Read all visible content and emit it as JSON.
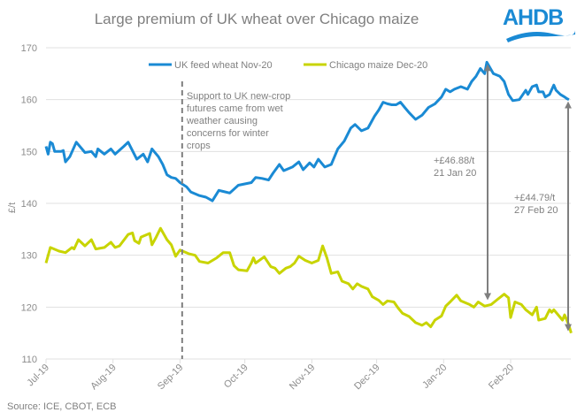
{
  "header": {
    "title": "Large premium of UK wheat over Chicago maize",
    "logo_text": "AHDB"
  },
  "footer": {
    "source": "Source: ICE, CBOT, ECB"
  },
  "colors": {
    "wheat": "#1a8ad4",
    "maize": "#c8d400",
    "grid": "#e0e0e0",
    "text": "#808080",
    "arrow": "#7f7f7f",
    "logo": "#1a8ad4"
  },
  "chart_data": {
    "type": "line",
    "title": "Large premium of UK wheat over Chicago maize",
    "xlabel": "",
    "ylabel": "£/t",
    "ylim": [
      110,
      170
    ],
    "yticks": [
      110,
      120,
      130,
      140,
      150,
      160,
      170
    ],
    "xlim": [
      "2019-07-01",
      "2020-02-29"
    ],
    "xticks": [
      {
        "date": "2019-07-01",
        "label": "Jul-19"
      },
      {
        "date": "2019-08-01",
        "label": "Aug-19"
      },
      {
        "date": "2019-09-01",
        "label": "Sep-19"
      },
      {
        "date": "2019-10-01",
        "label": "Oct-19"
      },
      {
        "date": "2019-11-01",
        "label": "Nov-19"
      },
      {
        "date": "2019-12-01",
        "label": "Dec-19"
      },
      {
        "date": "2020-01-01",
        "label": "Jan-20"
      },
      {
        "date": "2020-02-01",
        "label": "Feb-20"
      }
    ],
    "grid": true,
    "legend": "top",
    "series": [
      {
        "name": "UK feed wheat Nov-20",
        "color": "#1a8ad4",
        "points": [
          [
            "2019-07-01",
            151.0
          ],
          [
            "2019-07-02",
            149.5
          ],
          [
            "2019-07-03",
            151.8
          ],
          [
            "2019-07-04",
            151.5
          ],
          [
            "2019-07-05",
            150.0
          ],
          [
            "2019-07-08",
            150.0
          ],
          [
            "2019-07-09",
            150.2
          ],
          [
            "2019-07-10",
            148.0
          ],
          [
            "2019-07-12",
            149.0
          ],
          [
            "2019-07-15",
            151.8
          ],
          [
            "2019-07-17",
            150.8
          ],
          [
            "2019-07-19",
            149.8
          ],
          [
            "2019-07-22",
            150.0
          ],
          [
            "2019-07-24",
            149.0
          ],
          [
            "2019-07-25",
            150.5
          ],
          [
            "2019-07-28",
            149.5
          ],
          [
            "2019-07-31",
            150.5
          ],
          [
            "2019-08-02",
            149.5
          ],
          [
            "2019-08-06",
            151.0
          ],
          [
            "2019-08-08",
            151.8
          ],
          [
            "2019-08-12",
            148.5
          ],
          [
            "2019-08-15",
            149.5
          ],
          [
            "2019-08-17",
            148.0
          ],
          [
            "2019-08-19",
            150.5
          ],
          [
            "2019-08-22",
            149.0
          ],
          [
            "2019-08-24",
            147.5
          ],
          [
            "2019-08-26",
            145.5
          ],
          [
            "2019-08-28",
            145.0
          ],
          [
            "2019-08-30",
            144.8
          ],
          [
            "2019-09-01",
            144.0
          ],
          [
            "2019-09-04",
            143.2
          ],
          [
            "2019-09-06",
            142.2
          ],
          [
            "2019-09-10",
            141.5
          ],
          [
            "2019-09-13",
            141.2
          ],
          [
            "2019-09-16",
            140.5
          ],
          [
            "2019-09-19",
            142.5
          ],
          [
            "2019-09-21",
            142.3
          ],
          [
            "2019-09-24",
            142.0
          ],
          [
            "2019-09-28",
            143.5
          ],
          [
            "2019-10-04",
            144.0
          ],
          [
            "2019-10-06",
            145.0
          ],
          [
            "2019-10-09",
            144.8
          ],
          [
            "2019-10-12",
            144.5
          ],
          [
            "2019-10-14",
            145.8
          ],
          [
            "2019-10-17",
            147.5
          ],
          [
            "2019-10-19",
            146.3
          ],
          [
            "2019-10-23",
            147.0
          ],
          [
            "2019-10-26",
            148.0
          ],
          [
            "2019-10-28",
            146.5
          ],
          [
            "2019-10-31",
            147.8
          ],
          [
            "2019-11-02",
            147.0
          ],
          [
            "2019-11-04",
            148.5
          ],
          [
            "2019-11-07",
            147.0
          ],
          [
            "2019-11-10",
            147.5
          ],
          [
            "2019-11-13",
            150.5
          ],
          [
            "2019-11-16",
            152.0
          ],
          [
            "2019-11-19",
            154.5
          ],
          [
            "2019-11-21",
            155.2
          ],
          [
            "2019-11-24",
            154.0
          ],
          [
            "2019-11-27",
            154.5
          ],
          [
            "2019-11-30",
            156.8
          ],
          [
            "2019-12-02",
            158.0
          ],
          [
            "2019-12-04",
            159.5
          ],
          [
            "2019-12-06",
            159.2
          ],
          [
            "2019-12-08",
            159.0
          ],
          [
            "2019-12-10",
            159.0
          ],
          [
            "2019-12-12",
            159.5
          ],
          [
            "2019-12-14",
            158.5
          ],
          [
            "2019-12-16",
            157.5
          ],
          [
            "2019-12-19",
            156.2
          ],
          [
            "2019-12-22",
            157.0
          ],
          [
            "2019-12-25",
            158.5
          ],
          [
            "2019-12-28",
            159.2
          ],
          [
            "2019-12-31",
            160.5
          ],
          [
            "2020-01-02",
            162.0
          ],
          [
            "2020-01-04",
            161.5
          ],
          [
            "2020-01-06",
            162.0
          ],
          [
            "2020-01-09",
            162.5
          ],
          [
            "2020-01-12",
            162.0
          ],
          [
            "2020-01-14",
            163.5
          ],
          [
            "2020-01-16",
            164.5
          ],
          [
            "2020-01-18",
            166.0
          ],
          [
            "2020-01-20",
            165.0
          ],
          [
            "2020-01-21",
            167.2
          ],
          [
            "2020-01-24",
            165.0
          ],
          [
            "2020-01-27",
            164.5
          ],
          [
            "2020-01-29",
            163.5
          ],
          [
            "2020-01-31",
            161.0
          ],
          [
            "2020-02-02",
            159.8
          ],
          [
            "2020-02-05",
            160.0
          ],
          [
            "2020-02-08",
            161.8
          ],
          [
            "2020-02-09",
            161.0
          ],
          [
            "2020-02-11",
            162.5
          ],
          [
            "2020-02-13",
            162.8
          ],
          [
            "2020-02-14",
            161.5
          ],
          [
            "2020-02-16",
            161.5
          ],
          [
            "2020-02-17",
            160.5
          ],
          [
            "2020-02-19",
            161.0
          ],
          [
            "2020-02-21",
            162.8
          ],
          [
            "2020-02-22",
            161.8
          ],
          [
            "2020-02-24",
            161.0
          ],
          [
            "2020-02-26",
            160.5
          ],
          [
            "2020-02-27",
            160.2
          ],
          [
            "2020-02-28",
            160.0
          ]
        ]
      },
      {
        "name": "Chicago maize Dec-20",
        "color": "#c8d400",
        "points": [
          [
            "2019-07-01",
            128.5
          ],
          [
            "2019-07-03",
            131.5
          ],
          [
            "2019-07-07",
            130.8
          ],
          [
            "2019-07-10",
            130.5
          ],
          [
            "2019-07-13",
            131.5
          ],
          [
            "2019-07-14",
            131.2
          ],
          [
            "2019-07-16",
            133.0
          ],
          [
            "2019-07-19",
            131.8
          ],
          [
            "2019-07-22",
            133.0
          ],
          [
            "2019-07-24",
            131.2
          ],
          [
            "2019-07-28",
            131.5
          ],
          [
            "2019-07-31",
            132.5
          ],
          [
            "2019-08-02",
            131.5
          ],
          [
            "2019-08-04",
            131.8
          ],
          [
            "2019-08-08",
            134.0
          ],
          [
            "2019-08-10",
            134.3
          ],
          [
            "2019-08-11",
            132.8
          ],
          [
            "2019-08-13",
            132.3
          ],
          [
            "2019-08-14",
            133.5
          ],
          [
            "2019-08-18",
            134.2
          ],
          [
            "2019-08-19",
            132.0
          ],
          [
            "2019-08-21",
            133.5
          ],
          [
            "2019-08-23",
            135.2
          ],
          [
            "2019-08-26",
            133.0
          ],
          [
            "2019-08-28",
            132.0
          ],
          [
            "2019-08-30",
            129.8
          ],
          [
            "2019-09-01",
            131.0
          ],
          [
            "2019-09-05",
            130.3
          ],
          [
            "2019-09-08",
            130.0
          ],
          [
            "2019-09-10",
            128.8
          ],
          [
            "2019-09-14",
            128.5
          ],
          [
            "2019-09-18",
            129.5
          ],
          [
            "2019-09-21",
            130.5
          ],
          [
            "2019-09-24",
            130.5
          ],
          [
            "2019-09-26",
            128.0
          ],
          [
            "2019-09-28",
            127.2
          ],
          [
            "2019-10-02",
            127.0
          ],
          [
            "2019-10-04",
            128.5
          ],
          [
            "2019-10-05",
            129.5
          ],
          [
            "2019-10-06",
            128.5
          ],
          [
            "2019-10-10",
            129.7
          ],
          [
            "2019-10-13",
            127.8
          ],
          [
            "2019-10-15",
            127.5
          ],
          [
            "2019-10-17",
            126.5
          ],
          [
            "2019-10-20",
            127.5
          ],
          [
            "2019-10-22",
            127.8
          ],
          [
            "2019-10-24",
            128.5
          ],
          [
            "2019-10-26",
            129.8
          ],
          [
            "2019-10-29",
            129.0
          ],
          [
            "2019-11-01",
            128.5
          ],
          [
            "2019-11-04",
            129.0
          ],
          [
            "2019-11-06",
            131.8
          ],
          [
            "2019-11-08",
            129.5
          ],
          [
            "2019-11-10",
            126.5
          ],
          [
            "2019-11-13",
            126.8
          ],
          [
            "2019-11-15",
            125.0
          ],
          [
            "2019-11-18",
            124.5
          ],
          [
            "2019-11-20",
            123.5
          ],
          [
            "2019-11-22",
            124.5
          ],
          [
            "2019-11-24",
            124.0
          ],
          [
            "2019-11-27",
            123.5
          ],
          [
            "2019-11-29",
            122.0
          ],
          [
            "2019-12-02",
            121.3
          ],
          [
            "2019-12-04",
            120.5
          ],
          [
            "2019-12-06",
            121.2
          ],
          [
            "2019-12-09",
            121.0
          ],
          [
            "2019-12-11",
            119.8
          ],
          [
            "2019-12-13",
            118.8
          ],
          [
            "2019-12-16",
            118.2
          ],
          [
            "2019-12-19",
            117.0
          ],
          [
            "2019-12-22",
            116.5
          ],
          [
            "2019-12-24",
            117.0
          ],
          [
            "2019-12-26",
            116.2
          ],
          [
            "2019-12-28",
            117.5
          ],
          [
            "2019-12-31",
            118.3
          ],
          [
            "2020-01-02",
            120.2
          ],
          [
            "2020-01-04",
            121.0
          ],
          [
            "2020-01-07",
            122.3
          ],
          [
            "2020-01-09",
            121.2
          ],
          [
            "2020-01-13",
            120.5
          ],
          [
            "2020-01-15",
            120.0
          ],
          [
            "2020-01-17",
            121.0
          ],
          [
            "2020-01-20",
            120.2
          ],
          [
            "2020-01-23",
            120.5
          ],
          [
            "2020-01-26",
            121.5
          ],
          [
            "2020-01-29",
            122.5
          ],
          [
            "2020-01-31",
            121.8
          ],
          [
            "2020-02-01",
            118.0
          ],
          [
            "2020-02-03",
            121.0
          ],
          [
            "2020-02-06",
            120.5
          ],
          [
            "2020-02-08",
            119.5
          ],
          [
            "2020-02-11",
            118.5
          ],
          [
            "2020-02-13",
            120.0
          ],
          [
            "2020-02-14",
            117.5
          ],
          [
            "2020-02-17",
            117.8
          ],
          [
            "2020-02-19",
            119.5
          ],
          [
            "2020-02-20",
            119.0
          ],
          [
            "2020-02-21",
            119.5
          ],
          [
            "2020-02-23",
            118.5
          ],
          [
            "2020-02-25",
            117.5
          ],
          [
            "2020-02-26",
            118.5
          ],
          [
            "2020-02-27",
            117.5
          ],
          [
            "2020-02-28",
            116.5
          ],
          [
            "2020-02-29",
            115.0
          ]
        ]
      }
    ],
    "annotations": [
      {
        "kind": "vline-dashed",
        "date": "2019-09-02",
        "text_lines": [
          "Support to UK new-crop",
          "futures came from wet",
          "weather causing",
          "concerns for winter",
          "crops"
        ]
      },
      {
        "kind": "double-arrow",
        "date": "2020-01-21",
        "from": 167.2,
        "to": 121.0,
        "text_lines": [
          "+£46.88/t",
          "21 Jan 20"
        ]
      },
      {
        "kind": "double-arrow",
        "date": "2020-02-29",
        "from": 160.0,
        "to": 115.0,
        "text_lines": [
          "+£44.79/t",
          "27 Feb 20"
        ]
      }
    ]
  }
}
